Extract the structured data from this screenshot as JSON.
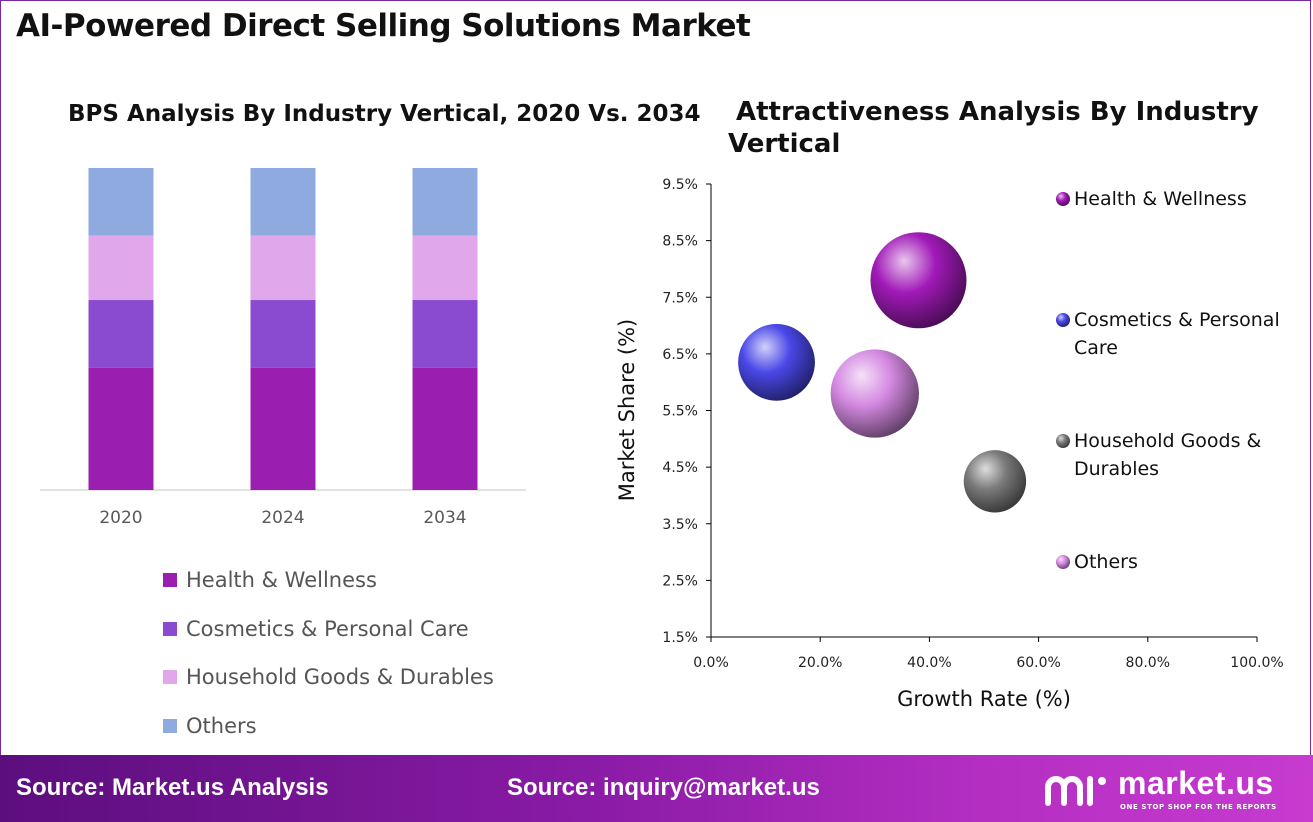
{
  "page": {
    "title": "AI-Powered Direct Selling Solutions Market"
  },
  "colors": {
    "health": "#9a1fb0",
    "cosmetics": "#8b4bd0",
    "household": "#e0a8ea",
    "others": "#8faadf",
    "footer_start": "#5c0e7e",
    "footer_end": "#c73bcf"
  },
  "chart_data": [
    {
      "type": "bar",
      "stacked": true,
      "normalized": true,
      "title": "BPS Analysis By Industry Vertical, 2020 Vs. 2034",
      "categories": [
        "2020",
        "2024",
        "2034"
      ],
      "series": [
        {
          "name": "Health & Wellness",
          "values": [
            38,
            38,
            38
          ],
          "color": "#9a1fb0"
        },
        {
          "name": "Cosmetics & Personal Care",
          "values": [
            21,
            21,
            21
          ],
          "color": "#8b4bd0"
        },
        {
          "name": "Household Goods & Durables",
          "values": [
            20,
            20,
            20
          ],
          "color": "#e0a8ea"
        },
        {
          "name": "Others",
          "values": [
            21,
            21,
            21
          ],
          "color": "#8faadf"
        }
      ],
      "legend_position": "bottom"
    },
    {
      "type": "scatter",
      "subtype": "bubble",
      "title": "Attractiveness Analysis By Industry Vertical",
      "xlabel": "Growth Rate (%)",
      "ylabel": "Market Share (%)",
      "xlim": [
        0,
        100
      ],
      "ylim": [
        1.5,
        9.5
      ],
      "xticks": [
        "0.0%",
        "20.0%",
        "40.0%",
        "60.0%",
        "80.0%",
        "100.0%"
      ],
      "yticks": [
        "1.5%",
        "2.5%",
        "3.5%",
        "4.5%",
        "5.5%",
        "6.5%",
        "7.5%",
        "8.5%",
        "9.5%"
      ],
      "points": [
        {
          "name": "Health & Wellness",
          "x": 38,
          "y": 7.8,
          "size": 1.0,
          "color": "#a11ab8"
        },
        {
          "name": "Cosmetics & Personal Care",
          "x": 12,
          "y": 6.35,
          "size": 0.8,
          "color": "#4a48e8"
        },
        {
          "name": "Household Goods & Durables",
          "x": 52,
          "y": 4.25,
          "size": 0.65,
          "color": "#7a7a7a"
        },
        {
          "name": "Others",
          "x": 30,
          "y": 5.8,
          "size": 0.92,
          "color": "#d58ae2"
        }
      ],
      "legend": [
        {
          "label_lines": [
            "Health & Wellness"
          ],
          "color": "#a11ab8"
        },
        {
          "label_lines": [
            "Cosmetics & Personal",
            "Care"
          ],
          "color": "#4a48e8"
        },
        {
          "label_lines": [
            "Household Goods &",
            "Durables"
          ],
          "color": "#7a7a7a"
        },
        {
          "label_lines": [
            "Others"
          ],
          "color": "#d58ae2"
        }
      ],
      "legend_position": "right"
    }
  ],
  "footer": {
    "source_left": "Source: Market.us Analysis",
    "source_right": "Source: inquiry@market.us",
    "brand": "market.us",
    "tagline": "ONE STOP SHOP FOR THE REPORTS"
  }
}
